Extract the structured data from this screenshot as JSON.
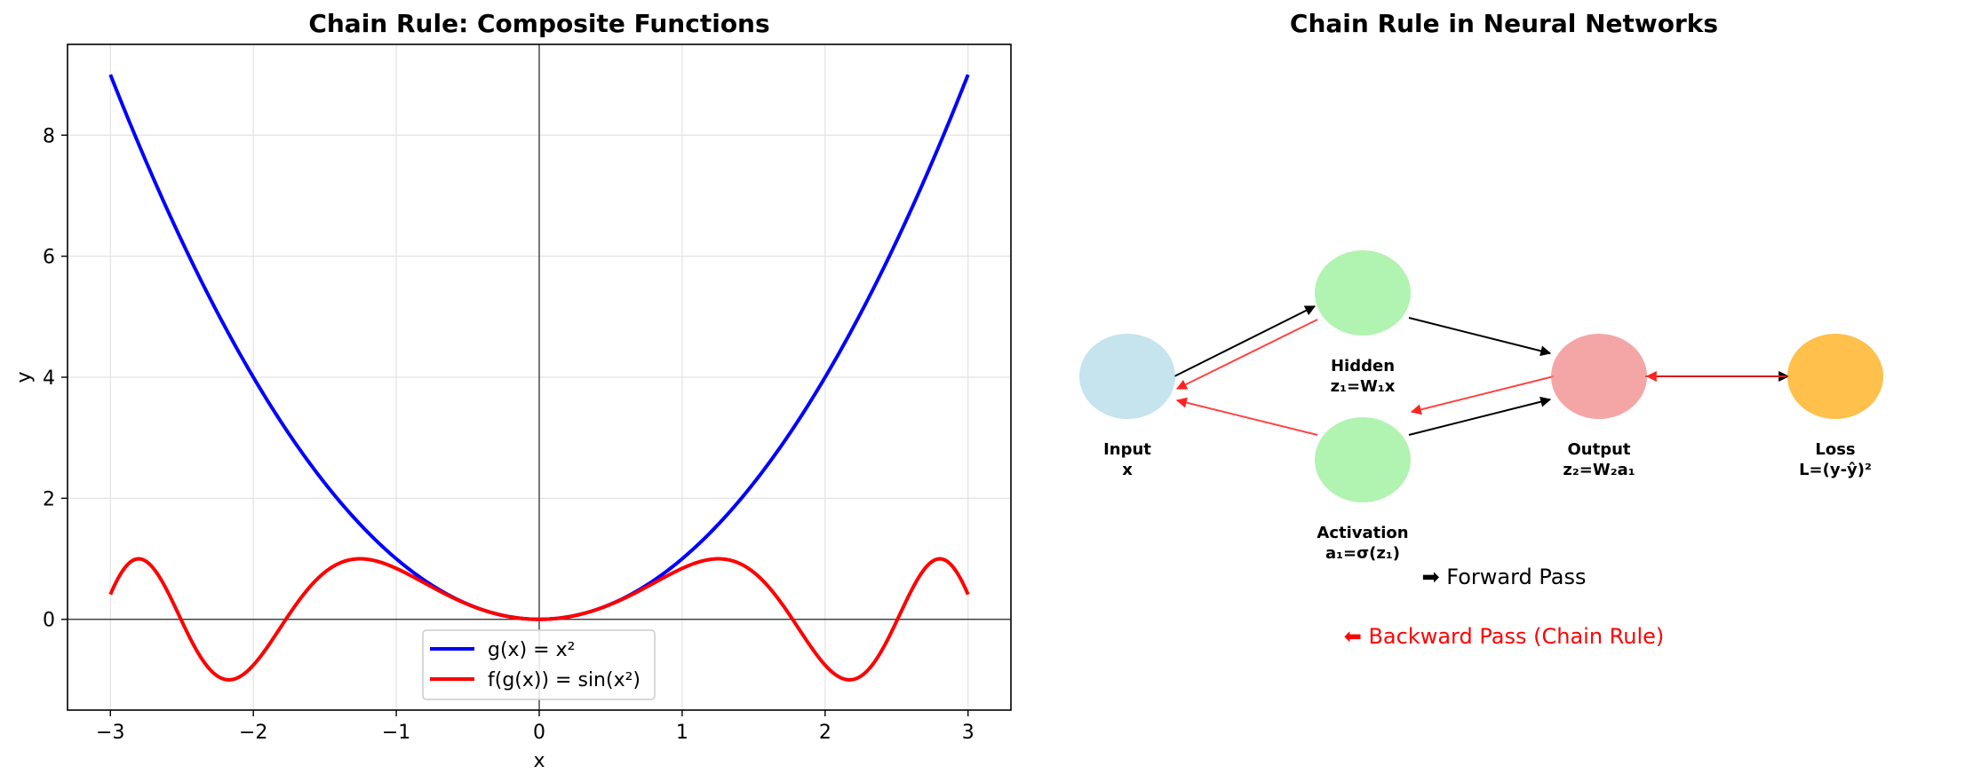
{
  "chart_data": [
    {
      "type": "line",
      "title": "Chain Rule: Composite Functions",
      "xlabel": "x",
      "ylabel": "y",
      "xlim": [
        -3.3,
        3.3
      ],
      "ylim": [
        -1.5,
        9.5
      ],
      "xticks": [
        -3,
        -2,
        -1,
        0,
        1,
        2,
        3
      ],
      "yticks": [
        0,
        2,
        4,
        6,
        8
      ],
      "xtick_labels": [
        "−3",
        "−2",
        "−1",
        "0",
        "1",
        "2",
        "3"
      ],
      "ytick_labels": [
        "0",
        "2",
        "4",
        "6",
        "8"
      ],
      "grid": true,
      "axhline": 0,
      "axvline": 0,
      "legend_position": "bottom-center",
      "series": [
        {
          "name": "g(x) = x²",
          "color": "#0000ff",
          "x": [
            -3.0,
            -2.75,
            -2.5,
            -2.25,
            -2.0,
            -1.75,
            -1.5,
            -1.25,
            -1.0,
            -0.75,
            -0.5,
            -0.25,
            0.0,
            0.25,
            0.5,
            0.75,
            1.0,
            1.25,
            1.5,
            1.75,
            2.0,
            2.25,
            2.5,
            2.75,
            3.0
          ],
          "y": [
            9.0,
            7.5625,
            6.25,
            5.0625,
            4.0,
            3.0625,
            2.25,
            1.5625,
            1.0,
            0.5625,
            0.25,
            0.0625,
            0.0,
            0.0625,
            0.25,
            0.5625,
            1.0,
            1.5625,
            2.25,
            3.0625,
            4.0,
            5.0625,
            6.25,
            7.5625,
            9.0
          ]
        },
        {
          "name": "f(g(x)) = sin(x²)",
          "color": "#ff0000",
          "x": [
            -3.0,
            -2.9,
            -2.8,
            -2.7,
            -2.6,
            -2.5,
            -2.4,
            -2.3,
            -2.2,
            -2.1,
            -2.0,
            -1.9,
            -1.8,
            -1.7,
            -1.6,
            -1.5,
            -1.4,
            -1.3,
            -1.2,
            -1.1,
            -1.0,
            -0.9,
            -0.8,
            -0.7,
            -0.6,
            -0.5,
            -0.4,
            -0.3,
            -0.2,
            -0.1,
            0.0,
            0.1,
            0.2,
            0.3,
            0.4,
            0.5,
            0.6,
            0.7,
            0.8,
            0.9,
            1.0,
            1.1,
            1.2,
            1.3,
            1.4,
            1.5,
            1.6,
            1.7,
            1.8,
            1.9,
            2.0,
            2.1,
            2.2,
            2.3,
            2.4,
            2.5,
            2.6,
            2.7,
            2.8,
            2.9,
            3.0
          ],
          "y": [
            0.412,
            0.882,
            0.998,
            0.854,
            0.455,
            -0.033,
            -0.511,
            -0.854,
            -0.992,
            -0.95,
            -0.757,
            -0.449,
            -0.101,
            0.256,
            0.549,
            0.778,
            0.925,
            0.993,
            0.991,
            0.936,
            0.841,
            0.724,
            0.597,
            0.47,
            0.352,
            0.247,
            0.159,
            0.09,
            0.04,
            0.01,
            0.0,
            0.01,
            0.04,
            0.09,
            0.159,
            0.247,
            0.352,
            0.47,
            0.597,
            0.724,
            0.841,
            0.936,
            0.991,
            0.993,
            0.925,
            0.778,
            0.549,
            0.256,
            -0.101,
            -0.449,
            -0.757,
            -0.95,
            -0.992,
            -0.854,
            -0.511,
            -0.033,
            0.455,
            0.854,
            0.998,
            0.882,
            0.412
          ]
        }
      ]
    },
    {
      "type": "diagram",
      "title": "Chain Rule in Neural Networks",
      "nodes": [
        {
          "id": "input",
          "name": "Input",
          "formula": "x",
          "color": "#add8e6"
        },
        {
          "id": "hidden",
          "name": "Hidden",
          "formula": "z₁=W₁x",
          "color": "#90ee90"
        },
        {
          "id": "activation",
          "name": "Activation",
          "formula": "a₁=σ(z₁)",
          "color": "#90ee90"
        },
        {
          "id": "output",
          "name": "Output",
          "formula": "z₂=W₂a₁",
          "color": "#f08080"
        },
        {
          "id": "loss",
          "name": "Loss",
          "formula": "L=(y-ŷ)²",
          "color": "#ffa500"
        }
      ],
      "forward_edges": [
        [
          "input",
          "hidden"
        ],
        [
          "hidden",
          "output"
        ],
        [
          "activation",
          "output"
        ],
        [
          "output",
          "loss"
        ]
      ],
      "backward_edges": [
        [
          "hidden",
          "input"
        ],
        [
          "activation",
          "input"
        ],
        [
          "output",
          "activation"
        ],
        [
          "loss",
          "output"
        ]
      ],
      "legend": {
        "forward": "➡ Forward Pass",
        "backward": "⬅ Backward Pass (Chain Rule)",
        "forward_color": "#000000",
        "backward_color": "#ff0000"
      }
    }
  ]
}
